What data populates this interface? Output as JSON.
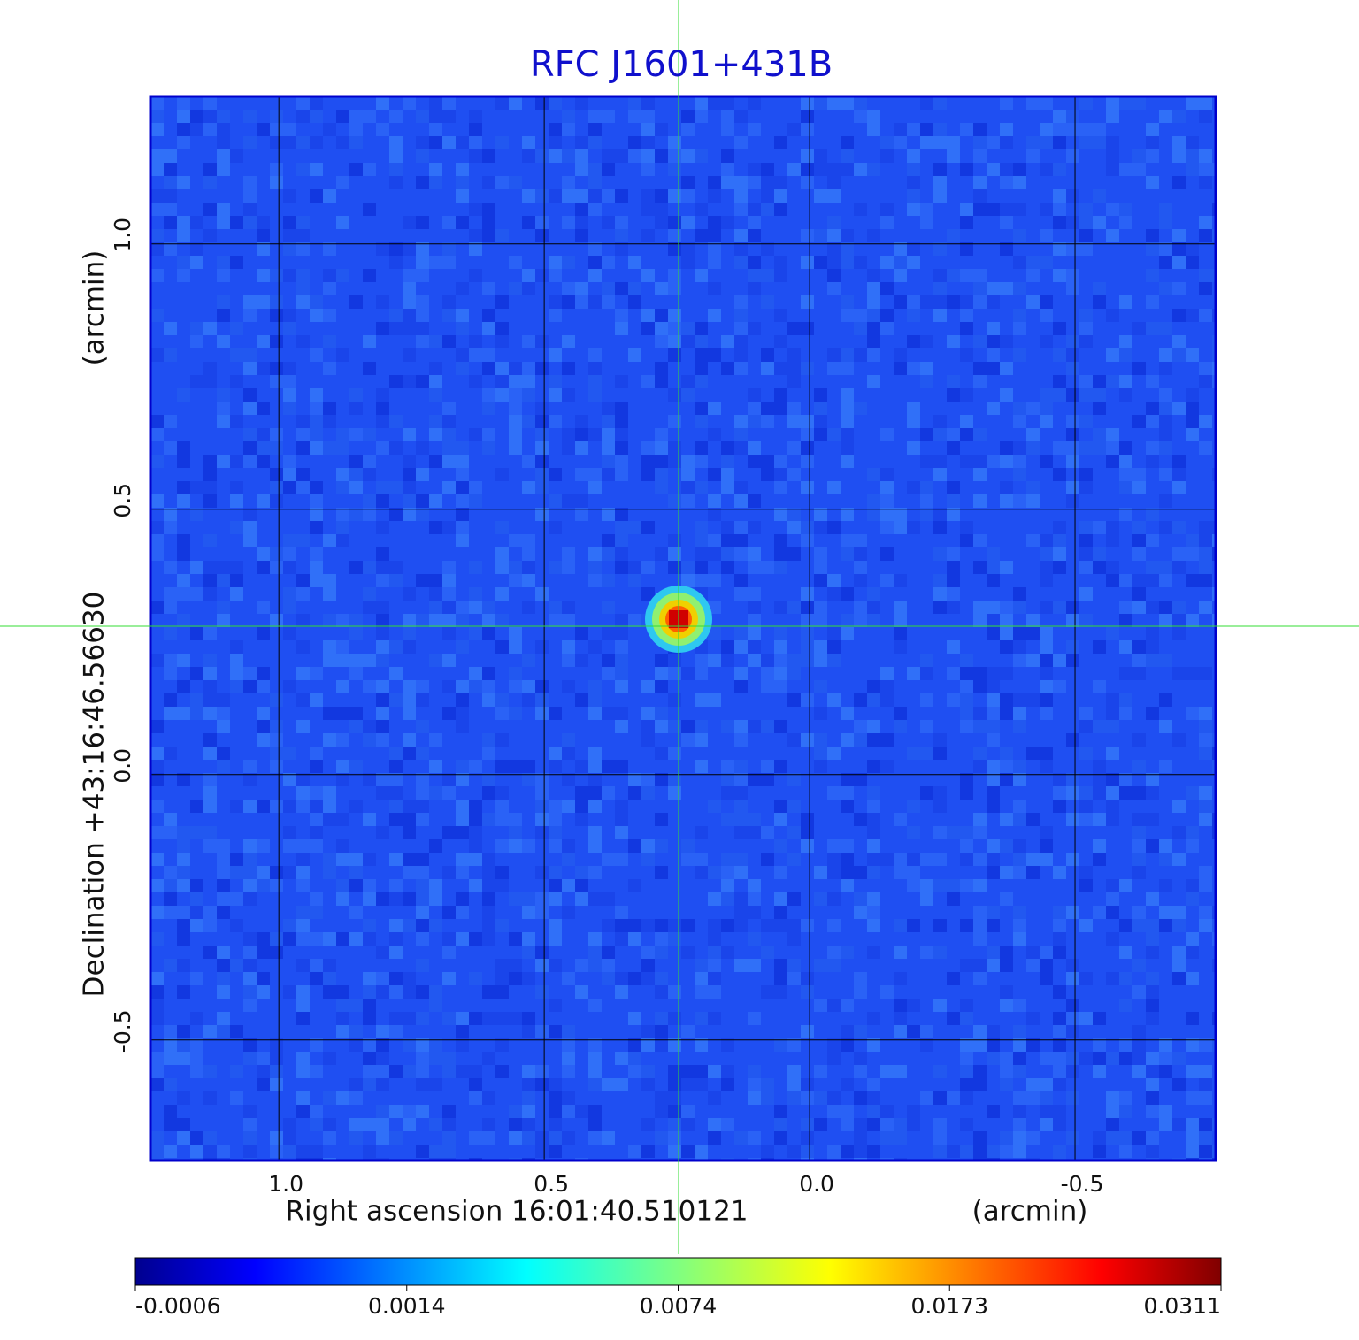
{
  "chart_data": {
    "type": "image",
    "title": "RFC J1601+431B",
    "x_label": "Right ascension  16:01:40.510121",
    "x_unit": "(arcmin)",
    "y_label": "Declination  +43:16:46.56630",
    "y_unit": "(arcmin)",
    "xlim": [
      1.242,
      -0.765
    ],
    "ylim": [
      -0.727,
      1.278
    ],
    "xticks": [
      {
        "value": 1,
        "label": "1.0"
      },
      0.5,
      {
        "value": 0,
        "label": "0.0"
      },
      -0.5
    ],
    "yticks": [
      -0.5,
      {
        "value": 0,
        "label": "0.0"
      },
      0.5,
      {
        "value": 1,
        "label": "1.0"
      }
    ],
    "grid": true,
    "colorbar_ticks": [
      -0.0006,
      0.0014,
      0.0074,
      0.0173,
      0.0311
    ]
  }
}
